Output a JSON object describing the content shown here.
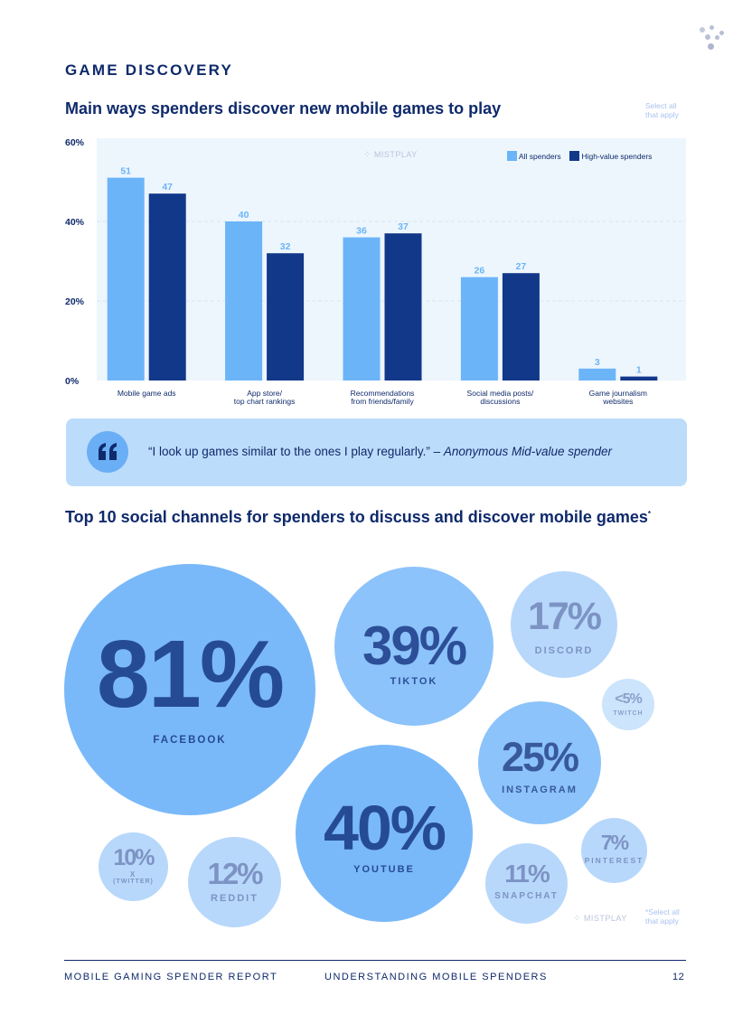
{
  "page": {
    "section_title": "GAME DISCOVERY",
    "chart_heading": "Main ways spenders discover new mobile games to play",
    "select_note_top": [
      "Select all",
      "that apply"
    ],
    "watermark": "MISTPLAY",
    "quote": {
      "text": "“I look up games similar to the ones I play regularly.” – ",
      "attribution": "Anonymous Mid-value spender"
    },
    "social_heading": "Top 10 social channels for spenders to discuss and discover mobile games",
    "social_heading_mark": "*",
    "select_note_bottom": [
      "*Select all",
      "that apply"
    ],
    "footer": {
      "left": "MOBILE GAMING SPENDER REPORT",
      "center": "UNDERSTANDING MOBILE SPENDERS",
      "page_number": "12"
    }
  },
  "chart_data": {
    "type": "bar",
    "categories": [
      [
        "Mobile game ads"
      ],
      [
        "App store/",
        "top chart rankings"
      ],
      [
        "Recommendations",
        "from friends/family"
      ],
      [
        "Social media posts/",
        "discussions"
      ],
      [
        "Game journalism",
        "websites"
      ]
    ],
    "series": [
      {
        "name": "All spenders",
        "color": "#6cb4f8",
        "values": [
          51,
          40,
          36,
          26,
          3
        ]
      },
      {
        "name": "High-value spenders",
        "color": "#12388a",
        "values": [
          47,
          32,
          37,
          27,
          1
        ]
      }
    ],
    "yticks": [
      "0%",
      "20%",
      "40%",
      "60%"
    ],
    "ylim": [
      0,
      60
    ],
    "grid": true,
    "legend": "top-right"
  },
  "bubbles": [
    {
      "id": "facebook",
      "pct": "81%",
      "label": "FACEBOOK",
      "value": 81
    },
    {
      "id": "youtube",
      "pct": "40%",
      "label": "YOUTUBE",
      "value": 40
    },
    {
      "id": "tiktok",
      "pct": "39%",
      "label": "TIKTOK",
      "value": 39
    },
    {
      "id": "instagram",
      "pct": "25%",
      "label": "INSTAGRAM",
      "value": 25
    },
    {
      "id": "discord",
      "pct": "17%",
      "label": "DISCORD",
      "value": 17
    },
    {
      "id": "reddit",
      "pct": "12%",
      "label": "REDDIT",
      "value": 12
    },
    {
      "id": "snapchat",
      "pct": "11%",
      "label": "SNAPCHAT",
      "value": 11
    },
    {
      "id": "x",
      "pct": "10%",
      "label": "X",
      "sublabel": "(TWITTER)",
      "value": 10
    },
    {
      "id": "pinterest",
      "pct": "7%",
      "label": "PINTEREST",
      "value": 7
    },
    {
      "id": "twitch",
      "pct": "<5%",
      "label": "TWITCH",
      "value": 5
    }
  ],
  "colors": {
    "navy": "#0f2a6b",
    "light_blue": "#6cb4f8",
    "dark_blue": "#12388a",
    "chart_bg": "#edf6fd",
    "quote_bg": "#bcdcfb"
  }
}
